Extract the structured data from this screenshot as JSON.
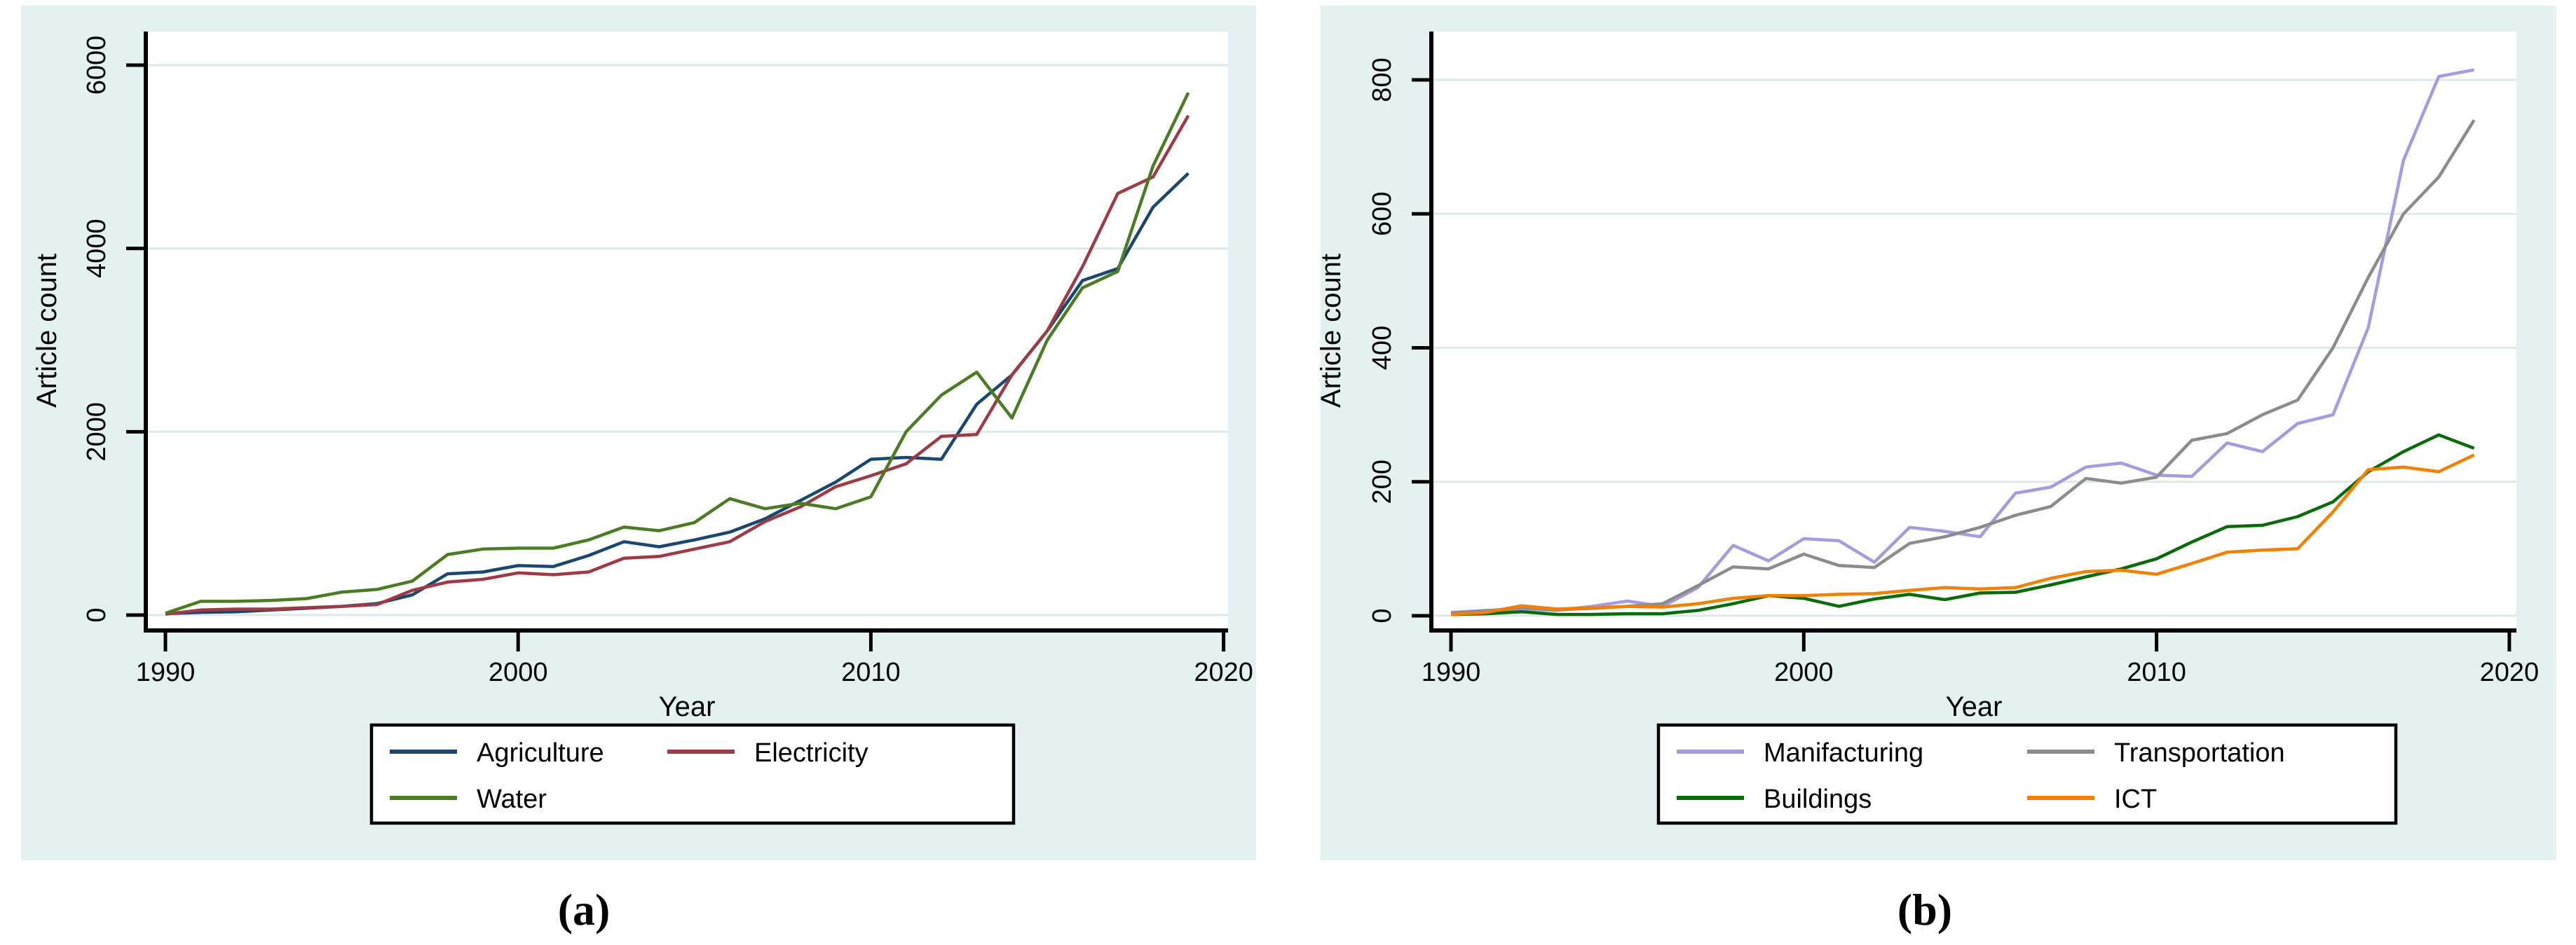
{
  "figure": {
    "captions": [
      "(a)",
      "(b)"
    ],
    "background_color": "#e5f0f1",
    "plot_background_color": "#ffffff",
    "gridline_color": "#dde9ea"
  },
  "chart_data": [
    {
      "id": "a",
      "type": "line",
      "title": "",
      "xlabel": "Year",
      "ylabel": "Article count",
      "x_ticks": [
        1990,
        2000,
        2010,
        2020
      ],
      "y_ticks": [
        0,
        2000,
        4000,
        6000
      ],
      "ylim": [
        0,
        6000
      ],
      "xlim": [
        1990,
        2020
      ],
      "grid": true,
      "legend_position": "bottom",
      "x": [
        1990,
        1991,
        1992,
        1993,
        1994,
        1995,
        1996,
        1997,
        1998,
        1999,
        2000,
        2001,
        2002,
        2003,
        2004,
        2005,
        2006,
        2007,
        2008,
        2009,
        2010,
        2011,
        2012,
        2013,
        2014,
        2015,
        2016,
        2017,
        2018,
        2019
      ],
      "series": [
        {
          "name": "Agriculture",
          "color": "#1a476f",
          "values": [
            15,
            30,
            35,
            55,
            75,
            95,
            125,
            220,
            450,
            470,
            540,
            530,
            650,
            800,
            745,
            820,
            905,
            1050,
            1250,
            1450,
            1700,
            1720,
            1700,
            2300,
            2620,
            3100,
            3650,
            3780,
            4450,
            4820
          ]
        },
        {
          "name": "Electricity",
          "color": "#9e3a44",
          "values": [
            10,
            55,
            65,
            65,
            80,
            95,
            115,
            270,
            360,
            390,
            460,
            440,
            470,
            620,
            640,
            720,
            800,
            1020,
            1180,
            1400,
            1520,
            1650,
            1950,
            1970,
            2620,
            3100,
            3800,
            4600,
            4780,
            5450
          ]
        },
        {
          "name": "Water",
          "color": "#4a7c23",
          "values": [
            20,
            150,
            150,
            160,
            180,
            250,
            280,
            370,
            660,
            720,
            730,
            730,
            820,
            960,
            920,
            1010,
            1270,
            1160,
            1220,
            1160,
            1290,
            2000,
            2400,
            2650,
            2150,
            3000,
            3570,
            3750,
            4900,
            5700
          ]
        }
      ]
    },
    {
      "id": "b",
      "type": "line",
      "title": "",
      "xlabel": "Year",
      "ylabel": "Article count",
      "x_ticks": [
        1990,
        2000,
        2010,
        2020
      ],
      "y_ticks": [
        0,
        200,
        400,
        600,
        800
      ],
      "ylim": [
        0,
        820
      ],
      "xlim": [
        1990,
        2020
      ],
      "grid": true,
      "legend_position": "bottom",
      "x": [
        1990,
        1991,
        1992,
        1993,
        1994,
        1995,
        1996,
        1997,
        1998,
        1999,
        2000,
        2001,
        2002,
        2003,
        2004,
        2005,
        2006,
        2007,
        2008,
        2009,
        2010,
        2011,
        2012,
        2013,
        2014,
        2015,
        2016,
        2017,
        2018,
        2019
      ],
      "series": [
        {
          "name": "Manifacturing",
          "color": "#a79ae0",
          "values": [
            5,
            8,
            10,
            8,
            14,
            22,
            14,
            42,
            105,
            82,
            115,
            112,
            80,
            132,
            126,
            118,
            183,
            192,
            222,
            228,
            210,
            208,
            258,
            245,
            287,
            300,
            430,
            680,
            805,
            815
          ]
        },
        {
          "name": "Transportation",
          "color": "#8c8c8c",
          "values": [
            4,
            7,
            12,
            9,
            11,
            14,
            18,
            45,
            73,
            70,
            92,
            75,
            72,
            108,
            118,
            132,
            150,
            163,
            205,
            198,
            207,
            262,
            272,
            300,
            322,
            400,
            505,
            600,
            655,
            740
          ]
        },
        {
          "name": "Buildings",
          "color": "#0a6b0a",
          "values": [
            2,
            3,
            6,
            2,
            2,
            3,
            3,
            8,
            18,
            30,
            26,
            14,
            25,
            32,
            24,
            34,
            35,
            46,
            58,
            70,
            85,
            110,
            133,
            135,
            148,
            170,
            215,
            245,
            270,
            250
          ]
        },
        {
          "name": "ICT",
          "color": "#f58000",
          "values": [
            2,
            5,
            15,
            10,
            12,
            14,
            13,
            18,
            26,
            30,
            30,
            32,
            33,
            38,
            42,
            40,
            42,
            56,
            66,
            68,
            62,
            78,
            95,
            98,
            100,
            155,
            218,
            222,
            215,
            240
          ]
        }
      ]
    }
  ]
}
